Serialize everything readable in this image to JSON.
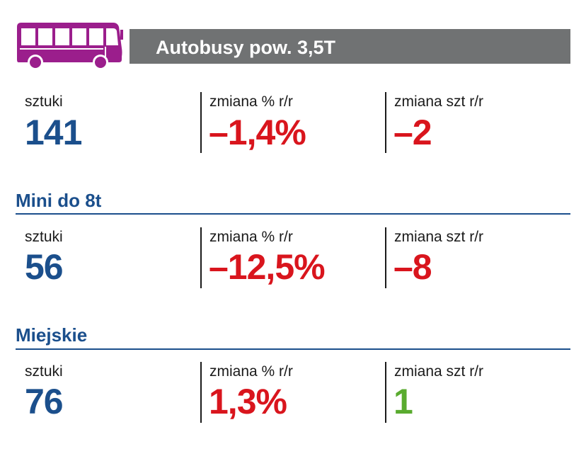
{
  "header": {
    "title": "Autobusy pow. 3,5T",
    "icon": "bus-icon",
    "icon_color": "#9b1e8c",
    "bar_color": "#707273"
  },
  "colors": {
    "blue": "#1b4f8c",
    "red": "#d9151d",
    "green": "#5aab2f"
  },
  "sections": [
    {
      "title": "",
      "cells": [
        {
          "label": "sztuki",
          "value": "141",
          "tone": "blue"
        },
        {
          "label": "zmiana % r/r",
          "value": "–1,4%",
          "tone": "red"
        },
        {
          "label": "zmiana szt r/r",
          "value": "–2",
          "tone": "red"
        }
      ]
    },
    {
      "title": "Mini do 8t",
      "cells": [
        {
          "label": "sztuki",
          "value": "56",
          "tone": "blue"
        },
        {
          "label": "zmiana % r/r",
          "value": "–12,5%",
          "tone": "red"
        },
        {
          "label": "zmiana szt r/r",
          "value": "–8",
          "tone": "red"
        }
      ]
    },
    {
      "title": "Miejskie",
      "cells": [
        {
          "label": "sztuki",
          "value": "76",
          "tone": "blue"
        },
        {
          "label": "zmiana % r/r",
          "value": "1,3%",
          "tone": "red"
        },
        {
          "label": "zmiana szt r/r",
          "value": "1",
          "tone": "green"
        }
      ]
    }
  ]
}
